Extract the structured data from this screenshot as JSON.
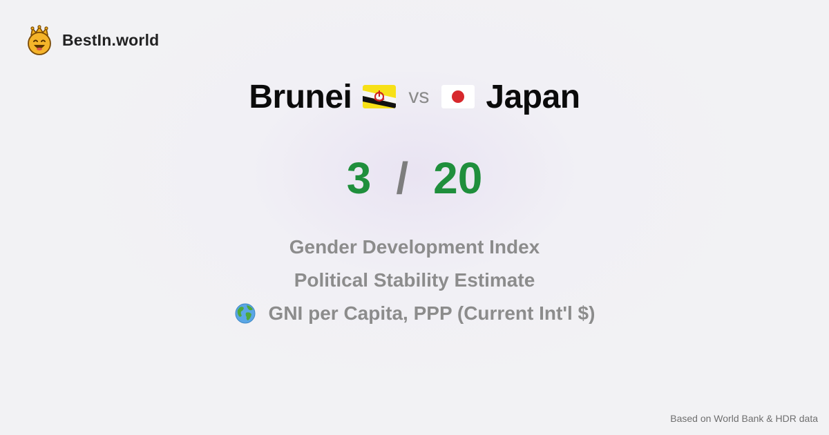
{
  "brand": {
    "name": "BestIn.world",
    "logo_icon": "smiling-crowned-face-icon"
  },
  "comparison": {
    "left_country": "Brunei",
    "left_flag": "brunei-flag-icon",
    "vs_label": "vs",
    "right_country": "Japan",
    "right_flag": "japan-flag-icon"
  },
  "score": {
    "left": "3",
    "separator": "/",
    "right": "20",
    "color": "#1f8f3c"
  },
  "metrics": [
    {
      "label": "Gender Development Index"
    },
    {
      "label": "Political Stability Estimate"
    },
    {
      "label": "GNI per Capita, PPP (Current Int'l $)",
      "icon": "globe-icon"
    }
  ],
  "footer": {
    "source_note": "Based on World Bank & HDR data"
  }
}
